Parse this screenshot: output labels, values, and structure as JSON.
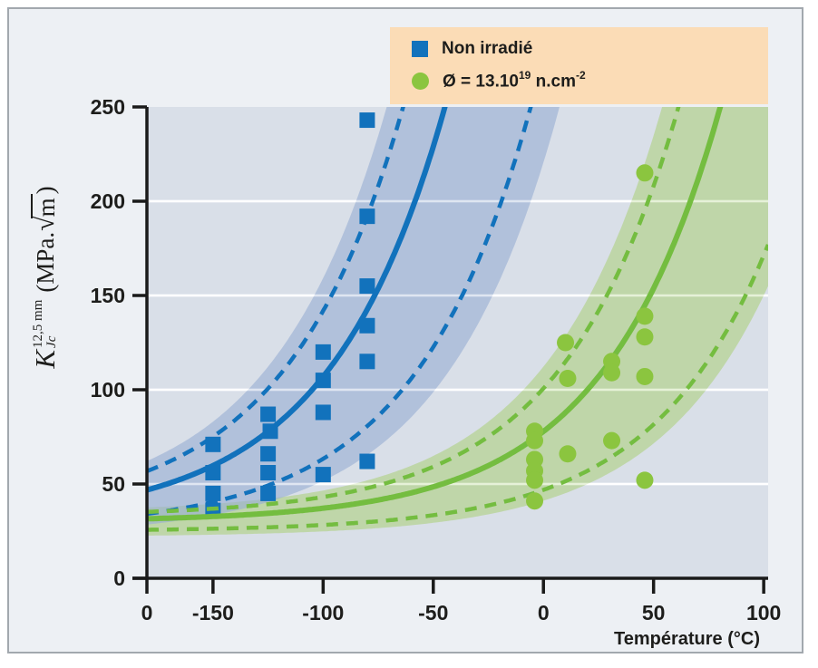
{
  "palette": {
    "frame_bg": "#edf0f4",
    "frame_border": "#a2a8ae",
    "plot_bg": "#d9dfe8",
    "gridline": "#ffffff",
    "axis": "#1a1a1a",
    "text": "#1d1d1b",
    "blue": "#1272bc",
    "blue_band": "#98aed4",
    "green": "#74bd40",
    "green_marker": "#8bc53f",
    "green_band": "#aed17f",
    "legend_bg": "#fbdcb6"
  },
  "legend": {
    "items": [
      {
        "marker": "square",
        "label": "Non irradié"
      },
      {
        "marker": "circle",
        "label_parts": {
          "base": "Ø = 13.10",
          "exp": "19",
          "middle": " n.cm",
          "exp2": "-2"
        }
      }
    ]
  },
  "y_axis_label": {
    "symbol": "K",
    "superscript": "12,5 mm",
    "subscript": "Jc",
    "unit_open": "(MPa.",
    "radical_sign": "√",
    "radicand": "m",
    "unit_close": ")"
  },
  "chart_data": {
    "type": "scatter",
    "title": "",
    "xlabel": "Température (°C)",
    "ylabel": "K_Jc^(12,5 mm) (MPa.√m)",
    "xlim": [
      -180,
      102
    ],
    "ylim": [
      0,
      250
    ],
    "x_ticks": [
      -150,
      -100,
      -50,
      0,
      50,
      100
    ],
    "y_ticks": [
      0,
      50,
      100,
      150,
      200,
      250
    ],
    "x_origin_label": "0",
    "grid": "horizontal-white",
    "legend_position": "top-right",
    "series": [
      {
        "name": "Non irradié",
        "marker": "square",
        "color_key": "blue",
        "points": [
          [
            -150,
            71
          ],
          [
            -150,
            56
          ],
          [
            -150,
            45
          ],
          [
            -150,
            36
          ],
          [
            -125,
            87
          ],
          [
            -124,
            78
          ],
          [
            -125,
            66
          ],
          [
            -125,
            56
          ],
          [
            -125,
            45
          ],
          [
            -100,
            120
          ],
          [
            -100,
            105
          ],
          [
            -100,
            88
          ],
          [
            -100,
            55
          ],
          [
            -80,
            243
          ],
          [
            -80,
            192
          ],
          [
            -80,
            155
          ],
          [
            -80,
            134
          ],
          [
            -80,
            115
          ],
          [
            -80,
            62
          ]
        ]
      },
      {
        "name": "Ø = 13.10^19 n.cm^-2",
        "marker": "circle",
        "color_key": "green_marker",
        "points": [
          [
            -4,
            78
          ],
          [
            -4,
            73
          ],
          [
            -4,
            63
          ],
          [
            -4,
            57
          ],
          [
            -4,
            52
          ],
          [
            -4,
            41
          ],
          [
            10,
            125
          ],
          [
            11,
            106
          ],
          [
            11,
            66
          ],
          [
            31,
            115
          ],
          [
            31,
            109
          ],
          [
            31,
            73
          ],
          [
            46,
            215
          ],
          [
            46,
            139
          ],
          [
            46,
            128
          ],
          [
            46,
            107
          ],
          [
            46,
            52
          ]
        ]
      }
    ],
    "curves": [
      {
        "series": "Non irradié",
        "color_key": "blue",
        "band_key": "blue_band",
        "T0": -105,
        "rate": 0.019,
        "solid": {
          "a": 30,
          "b": 70
        },
        "dash_upper": {
          "a": 33,
          "b": 99
        },
        "dash_lower": {
          "a": 26,
          "b": 34
        },
        "band_upper": {
          "a": 35,
          "b": 113
        },
        "band_lower": {
          "a": 22,
          "b": 27
        }
      },
      {
        "series": "Ø = 13.10^19 n.cm^-2",
        "color_key": "green",
        "band_key": "green_band",
        "T0": 20,
        "rate": 0.019,
        "solid": {
          "a": 30,
          "b": 70
        },
        "dash_upper": {
          "a": 33,
          "b": 99
        },
        "dash_lower": {
          "a": 25,
          "b": 32
        },
        "band_upper": {
          "a": 35,
          "b": 113
        },
        "band_lower": {
          "a": 22,
          "b": 28
        }
      }
    ]
  }
}
